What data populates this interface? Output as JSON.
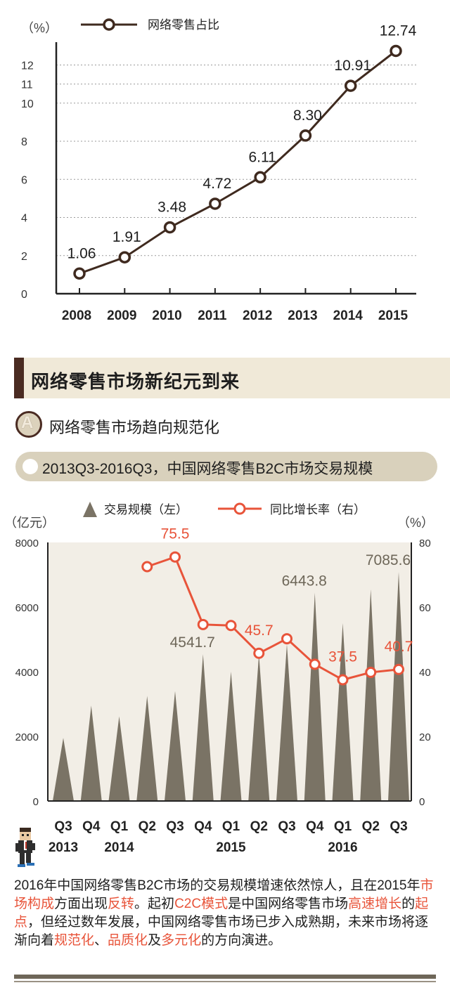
{
  "chart_data": [
    {
      "type": "line",
      "ylabel": "（%）",
      "legend": [
        "网络零售占比"
      ],
      "legend_position": "top-left",
      "categories": [
        "2008",
        "2009",
        "2010",
        "2011",
        "2012",
        "2013",
        "2014",
        "2015"
      ],
      "series": [
        {
          "name": "网络零售占比",
          "values": [
            1.06,
            1.91,
            3.48,
            4.72,
            6.11,
            8.3,
            10.91,
            12.74
          ]
        }
      ],
      "data_labels": [
        "1.06",
        "1.91",
        "3.48",
        "4.72",
        "6.11",
        "8.30",
        "10.91",
        "12.74"
      ],
      "y_ticks": [
        "0",
        "2",
        "4",
        "6",
        "8",
        "10",
        "11",
        "12"
      ],
      "ylim": [
        0,
        13.2
      ],
      "grid": "dotted horizontal",
      "colors": {
        "line": "#3f2a1f",
        "marker_fill": "#ffffff"
      }
    },
    {
      "type": "bar",
      "title": "2013Q3-2016Q3，中国网络零售B2C市场交易规模",
      "ylabel_left": "（亿元）",
      "ylabel_right": "（%）",
      "legend": [
        "交易规模（左）",
        "同比增长率（右）"
      ],
      "legend_position": "top",
      "categories": [
        "Q3",
        "Q4",
        "Q1",
        "Q2",
        "Q3",
        "Q4",
        "Q1",
        "Q2",
        "Q3",
        "Q4",
        "Q1",
        "Q2",
        "Q3"
      ],
      "year_labels": [
        {
          "label": "2013",
          "index": 0
        },
        {
          "label": "2014",
          "index": 2
        },
        {
          "label": "2015",
          "index": 6
        },
        {
          "label": "2016",
          "index": 10
        }
      ],
      "left_ticks": [
        "0",
        "2000",
        "4000",
        "6000",
        "8000"
      ],
      "right_ticks": [
        "0",
        "20",
        "40",
        "60",
        "80"
      ],
      "ylim_left": [
        0,
        8000
      ],
      "ylim_right": [
        0,
        80
      ],
      "series": [
        {
          "name": "交易规模（左）",
          "axis": "left",
          "values": [
            1950,
            2950,
            2620,
            3250,
            3400,
            4541.7,
            4000,
            4530,
            4850,
            6443.8,
            5500,
            6550,
            7085.6
          ]
        },
        {
          "name": "同比增长率（右）",
          "axis": "right",
          "values": [
            null,
            null,
            null,
            72.5,
            75.5,
            54.6,
            54.3,
            45.7,
            50.2,
            42.3,
            37.5,
            39.8,
            40.7
          ]
        }
      ],
      "bar_labels": [
        {
          "index": 5,
          "text": "4541.7"
        },
        {
          "index": 9,
          "text": "6443.8"
        },
        {
          "index": 12,
          "text": "7085.6"
        }
      ],
      "line_labels": [
        {
          "index": 4,
          "text": "75.5"
        },
        {
          "index": 7,
          "text": "45.7"
        },
        {
          "index": 10,
          "text": "37.5"
        },
        {
          "index": 12,
          "text": "40.7"
        }
      ],
      "colors": {
        "bars": "#7a7365",
        "line": "#e8543a",
        "panel": "#f2eee6"
      }
    }
  ],
  "section": {
    "title": "网络零售市场新纪元到来"
  },
  "subheading": {
    "letter": "A",
    "text": "网络零售市场趋向规范化"
  },
  "pill": {
    "text": "2013Q3-2016Q3，中国网络零售B2C市场交易规模"
  },
  "paragraph": {
    "segments": [
      {
        "text": "2016年中国网络零售B2C市场的交易规模增速依然惊人，且在2015年",
        "highlight": false
      },
      {
        "text": "市场构成",
        "highlight": true
      },
      {
        "text": "方面出现",
        "highlight": false
      },
      {
        "text": "反转",
        "highlight": true
      },
      {
        "text": "。起初",
        "highlight": false
      },
      {
        "text": "C2C模式",
        "highlight": true
      },
      {
        "text": "是中国网络零售市场",
        "highlight": false
      },
      {
        "text": "高速增长",
        "highlight": true
      },
      {
        "text": "的",
        "highlight": false
      },
      {
        "text": "起点",
        "highlight": true
      },
      {
        "text": "，但经过数年发展，中国网络零售市场已步入成熟期，未来市场将逐渐向着",
        "highlight": false
      },
      {
        "text": "规范化",
        "highlight": true
      },
      {
        "text": "、",
        "highlight": false
      },
      {
        "text": "品质化",
        "highlight": true
      },
      {
        "text": "及",
        "highlight": false
      },
      {
        "text": "多元化",
        "highlight": true
      },
      {
        "text": "的方向演进。",
        "highlight": false
      }
    ]
  }
}
